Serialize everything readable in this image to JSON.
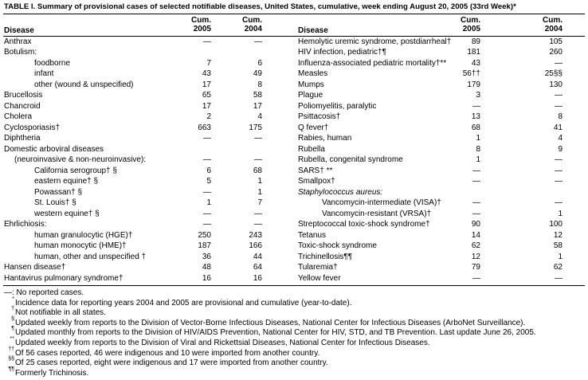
{
  "title": "TABLE I. Summary of provisional cases of selected notifiable diseases, United States, cumulative, week ending August 20, 2005 (33rd Week)*",
  "table": {
    "header": [
      "Disease",
      "Cum.\n2005",
      "Cum.\n2004",
      "Disease",
      "Cum.\n2005",
      "Cum.\n2004"
    ],
    "rows": [
      [
        "Anthrax",
        "—",
        "—",
        "Hemolytic uremic syndrome, postdiarrheal†",
        "89",
        "105"
      ],
      [
        "Botulism:",
        null,
        null,
        "HIV infection, pediatric†¶",
        "181",
        "260"
      ],
      [
        "foodborne",
        "7",
        "6",
        "Influenza-associated pediatric mortality†**",
        "43",
        "—"
      ],
      [
        "infant",
        "43",
        "49",
        "Measles",
        "56††",
        "25§§"
      ],
      [
        "other (wound & unspecified)",
        "17",
        "8",
        "Mumps",
        "179",
        "130"
      ],
      [
        "Brucellosis",
        "65",
        "58",
        "Plague",
        "3",
        "—"
      ],
      [
        "Chancroid",
        "17",
        "17",
        "Poliomyelitis, paralytic",
        "—",
        "—"
      ],
      [
        "Cholera",
        "2",
        "4",
        "Psittacosis†",
        "13",
        "8"
      ],
      [
        "Cyclosporiasis†",
        "663",
        "175",
        "Q fever†",
        "68",
        "41"
      ],
      [
        "Diphtheria",
        "—",
        "—",
        "Rabies, human",
        "1",
        "4"
      ],
      [
        "Domestic arboviral diseases",
        null,
        null,
        "Rubella",
        "8",
        "9"
      ],
      [
        "(neuroinvasive & non-neuroinvasive):",
        "—",
        "—",
        "Rubella, congenital syndrome",
        "1",
        "—"
      ],
      [
        "California serogroup† §",
        "6",
        "68",
        "SARS† **",
        "—",
        "—"
      ],
      [
        "eastern equine† §",
        "5",
        "1",
        "Smallpox†",
        "—",
        "—"
      ],
      [
        "Powassan† §",
        "—",
        "1",
        "Staphylococcus aureus:",
        null,
        null
      ],
      [
        "St. Louis† §",
        "1",
        "7",
        "Vancomycin-intermediate (VISA)†",
        "—",
        "—"
      ],
      [
        "western equine† §",
        "—",
        "—",
        "Vancomycin-resistant (VRSA)†",
        "—",
        "1"
      ],
      [
        "Ehrlichiosis:",
        "—",
        "—",
        "Streptococcal toxic-shock syndrome†",
        "90",
        "100"
      ],
      [
        "human granulocytic (HGE)†",
        "250",
        "243",
        "Tetanus",
        "14",
        "12"
      ],
      [
        "human monocytic (HME)†",
        "187",
        "166",
        "Toxic-shock syndrome",
        "62",
        "58"
      ],
      [
        "human, other and unspecified †",
        "36",
        "44",
        "Trichinellosis¶¶",
        "12",
        "1"
      ],
      [
        "Hansen disease†",
        "48",
        "64",
        "Tularemia†",
        "79",
        "62"
      ],
      [
        "Hantavirus pulmonary syndrome†",
        "16",
        "16",
        "Yellow fever",
        "—",
        "—"
      ]
    ]
  },
  "footnotes": [
    {
      "mark": null,
      "text": "—: No reported cases."
    },
    {
      "mark": "*",
      "text": "Incidence data for reporting years 2004 and 2005 are provisional and cumulative (year-to-date)."
    },
    {
      "mark": "†",
      "text": "Not notifiable in all states."
    },
    {
      "mark": "§",
      "text": "Updated weekly from reports to the Division of Vector-Borne Infectious Diseases, National Center for Infectious Diseases (ArboNet Surveillance)."
    },
    {
      "mark": "¶",
      "text": "Updated monthly from reports to the Division of HIV/AIDS Prevention, National Center for HIV, STD, and TB Prevention. Last update June 26, 2005."
    },
    {
      "mark": "**",
      "text": "Updated weekly from reports to the Division of Viral and Rickettsial Diseases, National Center for Infectious Diseases."
    },
    {
      "mark": "††",
      "text": "Of 56 cases reported, 46 were indigenous and 10 were imported from another country."
    },
    {
      "mark": "§§",
      "text": "Of 25 cases reported, eight were indigenous and 17 were imported from another country."
    },
    {
      "mark": "¶¶",
      "text": "Formerly Trichinosis."
    }
  ]
}
